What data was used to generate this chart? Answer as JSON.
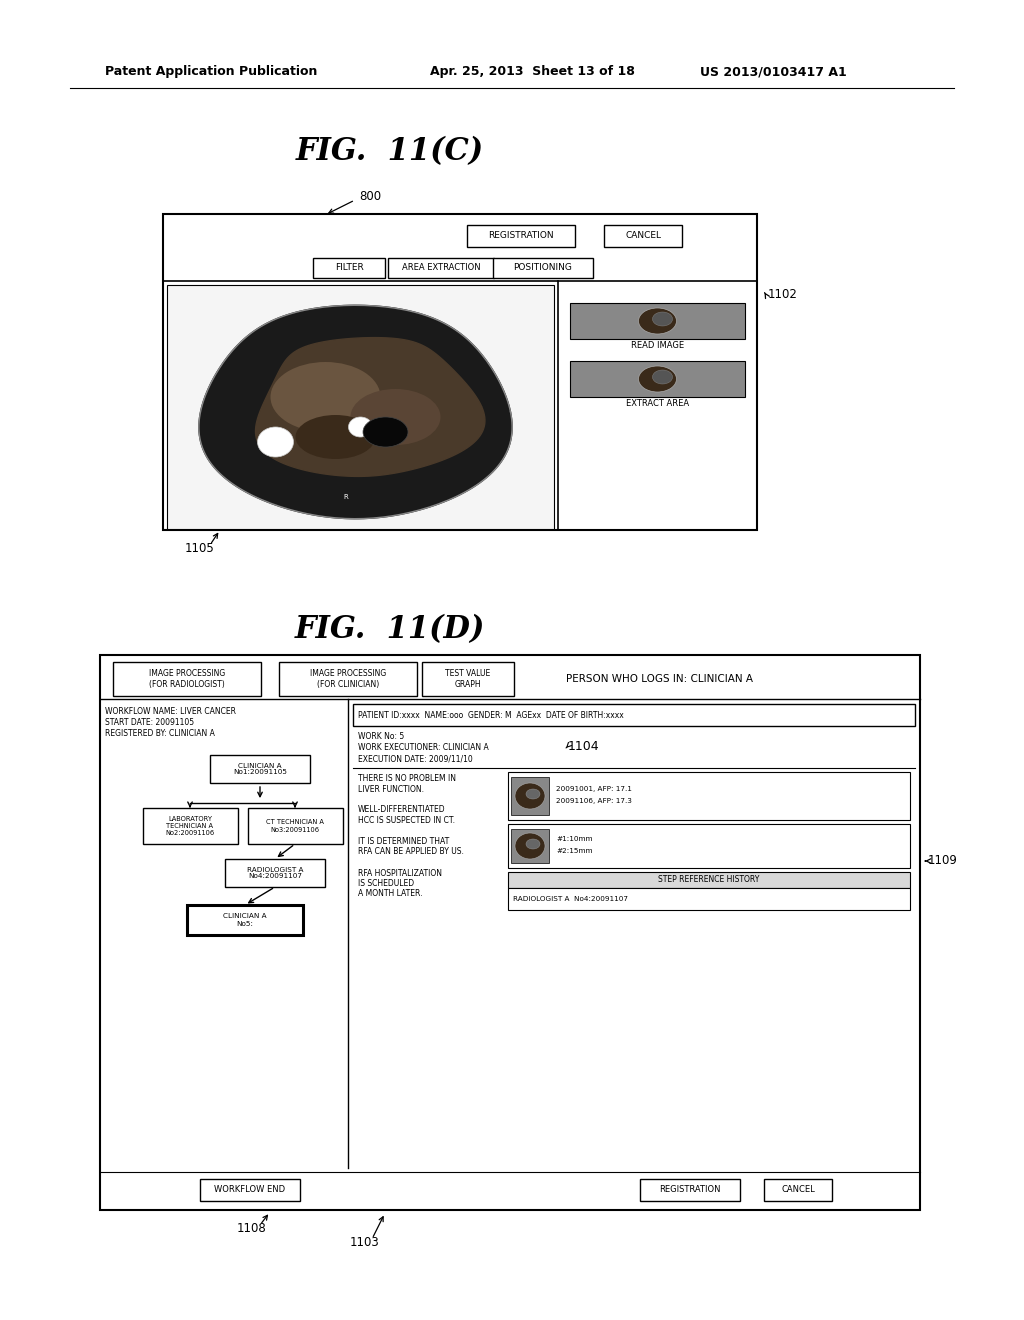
{
  "bg_color": "#ffffff",
  "header_left": "Patent Application Publication",
  "header_mid": "Apr. 25, 2013  Sheet 13 of 18",
  "header_right": "US 2013/0103417 A1",
  "fig11c_title": "FIG.  11(C)",
  "fig11d_title": "FIG.  11(D)",
  "label_800": "800",
  "label_1102": "1102",
  "label_1105": "1105",
  "label_1104": "1104",
  "label_1108": "1108",
  "label_1103": "1103",
  "label_1109": "1109"
}
